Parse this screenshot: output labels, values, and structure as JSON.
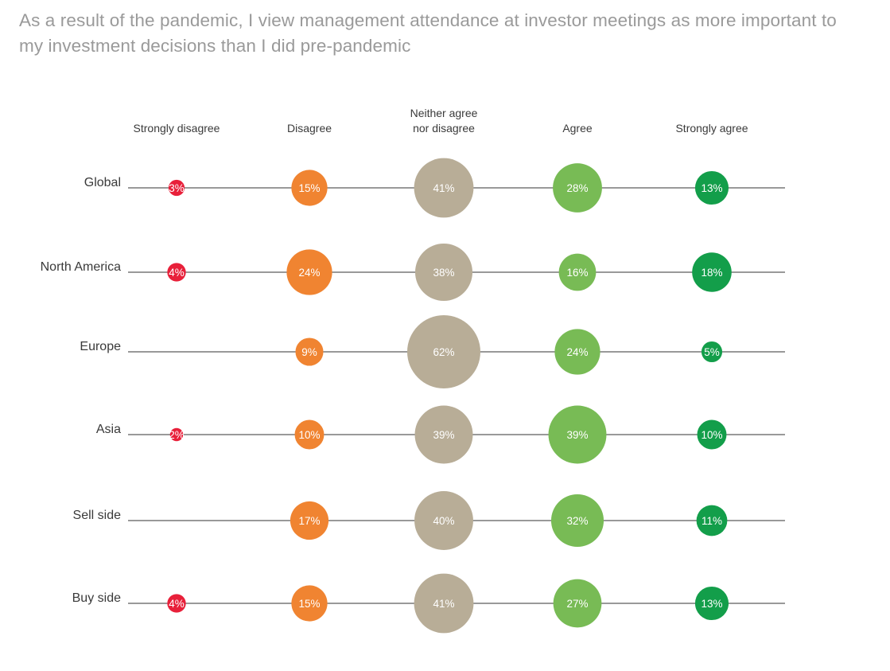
{
  "chart_data": {
    "type": "bubble",
    "title": "As a result of the pandemic, I view management attendance at investor meetings as more important to my investment decisions than I did pre-pandemic",
    "categories": [
      {
        "lines": [
          "Strongly disagree"
        ],
        "color": "#e8203a"
      },
      {
        "lines": [
          "Disagree"
        ],
        "color": "#f08431"
      },
      {
        "lines": [
          "Neither agree",
          "nor disagree"
        ],
        "color": "#b8ad97"
      },
      {
        "lines": [
          "Agree"
        ],
        "color": "#78bb55"
      },
      {
        "lines": [
          "Strongly agree"
        ],
        "color": "#139e4a"
      }
    ],
    "rows": [
      {
        "label": "Global",
        "values": [
          3,
          15,
          41,
          28,
          13
        ],
        "display": [
          "3%",
          "15%",
          "41%",
          "28%",
          "13%"
        ]
      },
      {
        "label": "North America",
        "values": [
          4,
          24,
          38,
          16,
          18
        ],
        "display": [
          "4%",
          "24%",
          "38%",
          "16%",
          "18%"
        ]
      },
      {
        "label": "Europe",
        "values": [
          null,
          9,
          62,
          24,
          5
        ],
        "display": [
          null,
          "9%",
          "62%",
          "24%",
          "5%"
        ]
      },
      {
        "label": "Asia",
        "values": [
          2,
          10,
          39,
          39,
          10
        ],
        "display": [
          "2%",
          "10%",
          "39%",
          "39%",
          "10%"
        ]
      },
      {
        "label": "Sell side",
        "values": [
          null,
          17,
          40,
          32,
          11
        ],
        "display": [
          null,
          "17%",
          "40%",
          "32%",
          "11%"
        ]
      },
      {
        "label": "Buy side",
        "values": [
          4,
          15,
          41,
          27,
          13
        ],
        "display": [
          "4%",
          "15%",
          "41%",
          "27%",
          "13%"
        ]
      }
    ]
  }
}
